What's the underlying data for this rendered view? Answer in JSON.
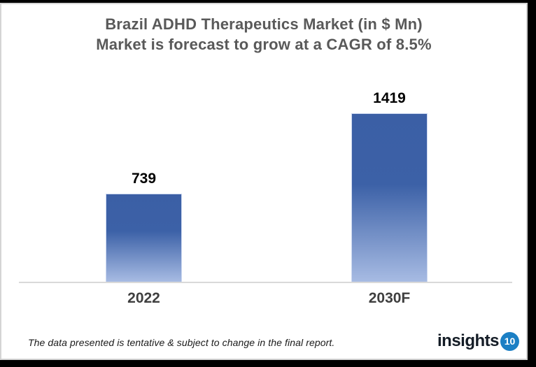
{
  "chart_data": {
    "type": "bar",
    "title_line1": "Brazil ADHD Therapeutics Market (in $ Mn)",
    "title_line2": "Market is forecast to grow at a CAGR of 8.5%",
    "categories": [
      "2022",
      "2030F"
    ],
    "values": [
      739,
      1419
    ],
    "ylim": [
      0,
      1419
    ],
    "grid": false,
    "legend": false,
    "xlabel": "",
    "ylabel": "",
    "bar_color_top": "#3B5FA5",
    "bar_color_bottom": "#A7BBE3",
    "axis_line_color": "#D9D9D9"
  },
  "footer": {
    "disclaimer": "The data presented is tentative & subject to change in the final report.",
    "logo_text": "insights",
    "logo_badge": "10",
    "logo_badge_color": "#1B7FC4"
  },
  "colors": {
    "title_text": "#595959",
    "category_label_text": "#3F3F3F",
    "value_label_text": "#000000",
    "frame_shadow": "#000000"
  }
}
